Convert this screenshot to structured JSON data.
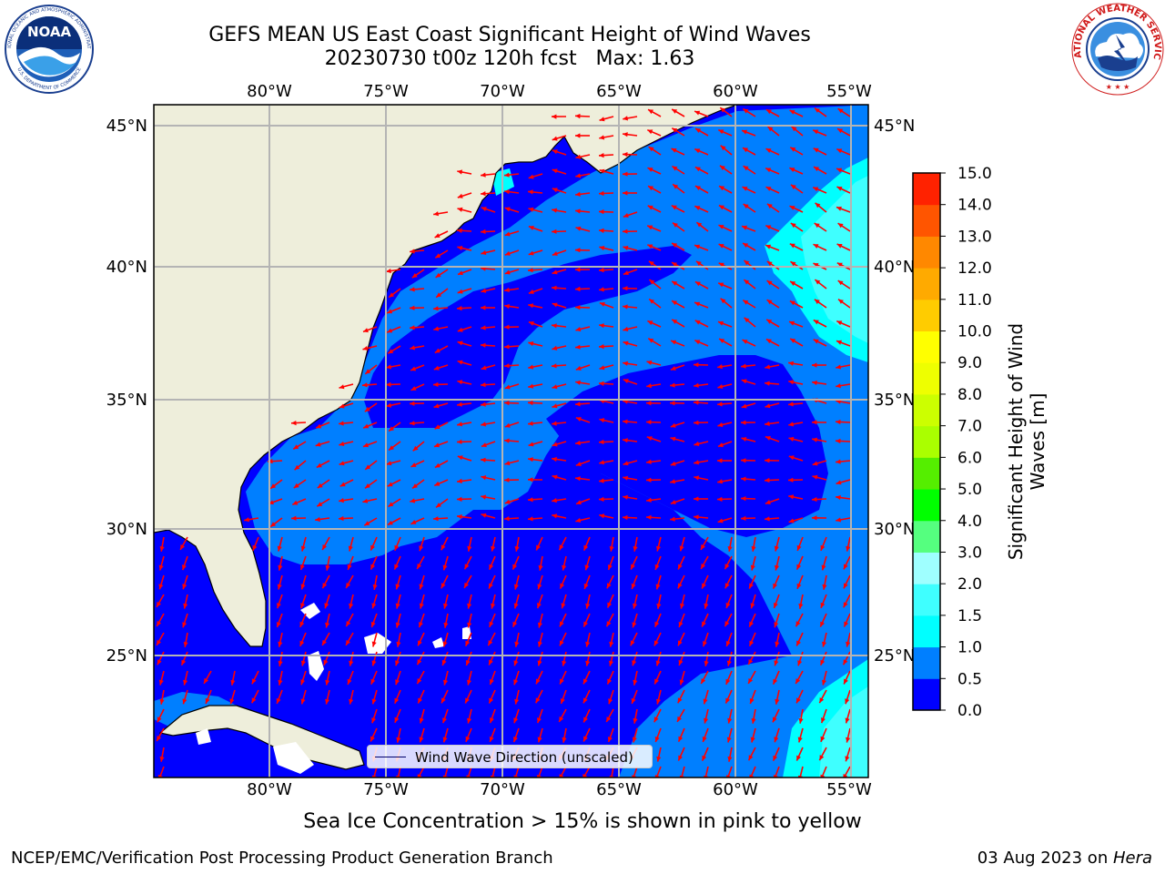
{
  "title": {
    "line1": "GEFS MEAN US East Coast Significant Height of Wind Waves",
    "line2": "20230730 t00z 120h fcst   Max: 1.63"
  },
  "logos": {
    "noaa": {
      "text": "NOAA",
      "ring_top": "NATIONAL OCEANIC AND ATMOSPHERIC ADMINISTRATION",
      "ring_bottom": "U.S. DEPARTMENT OF COMMERCE"
    },
    "nws": {
      "ring": "NATIONAL WEATHER SERVICE"
    }
  },
  "map": {
    "lon_labels": [
      "80°W",
      "75°W",
      "70°W",
      "65°W",
      "60°W",
      "55°W"
    ],
    "lat_labels": [
      "45°N",
      "40°N",
      "35°N",
      "30°N",
      "25°N"
    ],
    "colors": {
      "land": "#eeeedb",
      "band_0_05": "#0000ff",
      "band_05_1": "#007fff",
      "band_1_15": "#00ffff",
      "band_15_2": "#3fffff",
      "arrow": "#ff0000",
      "grid": "#b4b4b4",
      "coast": "#000000"
    }
  },
  "legend": {
    "label": "Wind Wave Direction (unscaled)"
  },
  "colorbar": {
    "label": "Significant Height of Wind Waves [m]",
    "label_line1": "Significant Height of Wind",
    "label_line2": "Waves [m]",
    "ticks": [
      "0.0",
      "0.5",
      "1.0",
      "1.5",
      "2.0",
      "3.0",
      "4.0",
      "5.0",
      "6.0",
      "7.0",
      "8.0",
      "9.0",
      "10.0",
      "11.0",
      "12.0",
      "13.0",
      "14.0",
      "15.0"
    ],
    "colors": [
      "#0000ff",
      "#007fff",
      "#00ffff",
      "#3fffff",
      "#9fffff",
      "#55ff7f",
      "#00ff00",
      "#55ee00",
      "#aaff00",
      "#ccff00",
      "#eeff00",
      "#ffff00",
      "#ffcc00",
      "#ffaa00",
      "#ff8800",
      "#ff5500",
      "#ff2200"
    ]
  },
  "footer": {
    "note": "Sea Ice Concentration > 15% is shown in pink to yellow",
    "left": "NCEP/EMC/Verification Post Processing Product Generation Branch",
    "right_date": "03 Aug 2023 on ",
    "right_machine": "Hera"
  }
}
